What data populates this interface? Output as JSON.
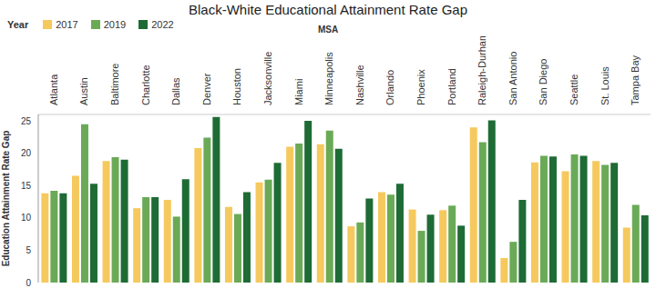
{
  "chart_data": {
    "type": "bar",
    "title": "Black-White Educational Attainment Rate Gap",
    "xlabel": "MSA",
    "ylabel": "Education Attainment Rate Gap",
    "legend_title": "Year",
    "legend": "top-left",
    "grid": false,
    "categories": [
      "Atlanta",
      "Austin",
      "Baltimore",
      "Charlotte",
      "Dallas",
      "Denver",
      "Houston",
      "Jacksonville",
      "Miami",
      "Minneapolis",
      "Nashville",
      "Orlando",
      "Phoenix",
      "Portland",
      "Raleigh-Durham",
      "San Antonio",
      "San Diego",
      "Seattle",
      "St. Louis",
      "Tampa Bay"
    ],
    "series": [
      {
        "name": "2017",
        "color": "#f5c95e",
        "values": [
          13.8,
          16.5,
          18.8,
          11.5,
          12.8,
          20.8,
          11.7,
          15.5,
          21.0,
          21.4,
          8.7,
          14.0,
          11.3,
          11.2,
          24.0,
          3.8,
          18.6,
          17.2,
          18.8,
          8.5
        ]
      },
      {
        "name": "2019",
        "color": "#6aaa57",
        "values": [
          14.2,
          24.5,
          19.4,
          13.2,
          10.2,
          22.4,
          10.6,
          15.9,
          21.5,
          23.5,
          9.3,
          13.6,
          8.0,
          11.9,
          21.7,
          6.3,
          19.6,
          19.8,
          18.2,
          12.0
        ]
      },
      {
        "name": "2022",
        "color": "#1e6b35",
        "values": [
          13.8,
          15.3,
          19.0,
          13.2,
          16.0,
          25.6,
          14.0,
          18.5,
          25.0,
          20.7,
          13.0,
          15.3,
          10.5,
          8.8,
          25.1,
          12.8,
          19.5,
          19.6,
          18.5,
          10.4
        ]
      }
    ],
    "ylim": [
      0,
      26
    ],
    "yticks": [
      0,
      5,
      10,
      15,
      20,
      25
    ]
  }
}
